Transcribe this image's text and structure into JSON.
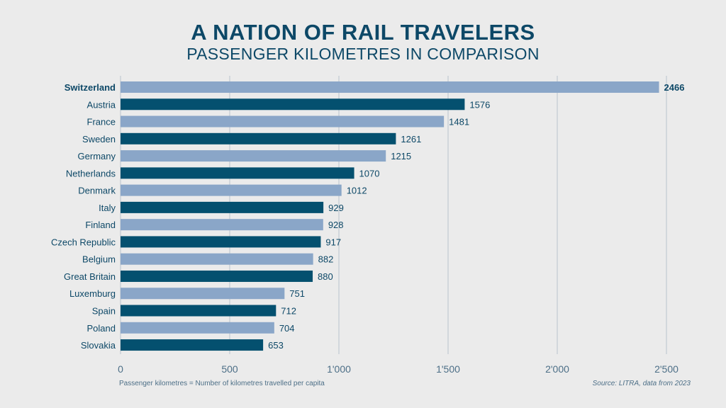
{
  "chart_data": {
    "type": "bar",
    "orientation": "horizontal",
    "title": "A NATION OF RAIL TRAVELERS",
    "subtitle": "PASSENGER KILOMETRES IN COMPARISON",
    "categories": [
      "Switzerland",
      "Austria",
      "France",
      "Sweden",
      "Germany",
      "Netherlands",
      "Denmark",
      "Italy",
      "Finland",
      "Czech Republic",
      "Belgium",
      "Great Britain",
      "Luxemburg",
      "Spain",
      "Poland",
      "Slovakia"
    ],
    "values": [
      2466,
      1576,
      1481,
      1261,
      1215,
      1070,
      1012,
      929,
      928,
      917,
      882,
      880,
      751,
      712,
      704,
      653
    ],
    "value_labels": [
      "2466",
      "1576",
      "1481",
      "1261",
      "1215",
      "1070",
      "1012",
      "929",
      "928",
      "917",
      "882",
      "880",
      "751",
      "712",
      "704",
      "653"
    ],
    "xlim": [
      0,
      2500
    ],
    "xticks": [
      0,
      500,
      1000,
      1500,
      2000,
      2500
    ],
    "xtick_labels": [
      "0",
      "500",
      "1'000",
      "1'500",
      "2'000",
      "2'500"
    ],
    "grid": true,
    "highlight": "Switzerland",
    "colors": {
      "light": "#8aa6c8",
      "dark": "#04506f",
      "text": "#0d4867",
      "grid": "#b9c3cc"
    }
  },
  "footnote": "Passenger kilometres = Number of kilometres travelled per capita",
  "source": "Source: LITRA, data from 2023"
}
